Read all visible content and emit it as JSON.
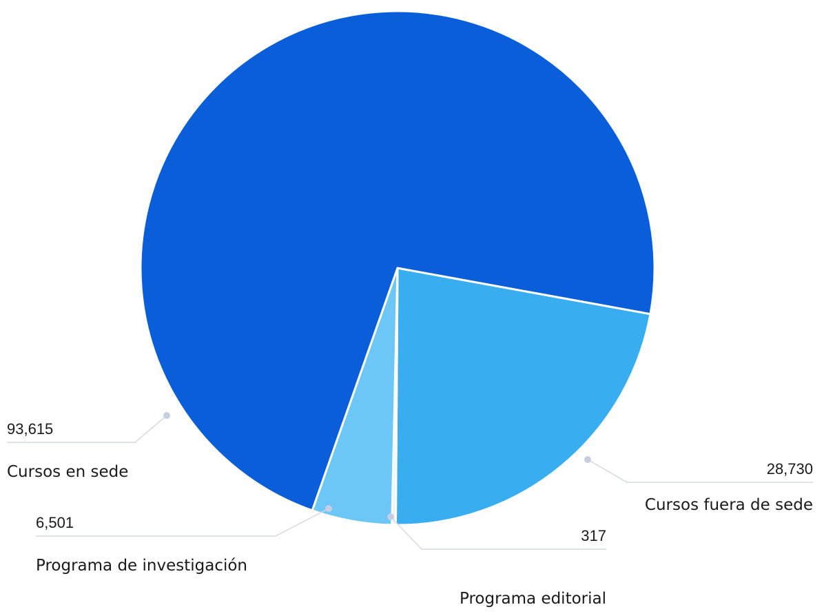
{
  "chart_data": {
    "type": "pie",
    "title": "",
    "slices": [
      {
        "name": "Cursos fuera de sede",
        "value": 28730,
        "label": "28,730",
        "color": "#38aef0"
      },
      {
        "name": "Programa editorial",
        "value": 317,
        "label": "317",
        "color": "#e8f4fc"
      },
      {
        "name": "Programa de investigación",
        "value": 6501,
        "label": "6,501",
        "color": "#6cc6f6"
      },
      {
        "name": "Cursos en sede",
        "value": 93615,
        "label": "93,615",
        "color": "#0a5ed9"
      }
    ],
    "start_direction": "east",
    "direction": "clockwise",
    "legend": "none",
    "labels": "outside with leader lines"
  }
}
